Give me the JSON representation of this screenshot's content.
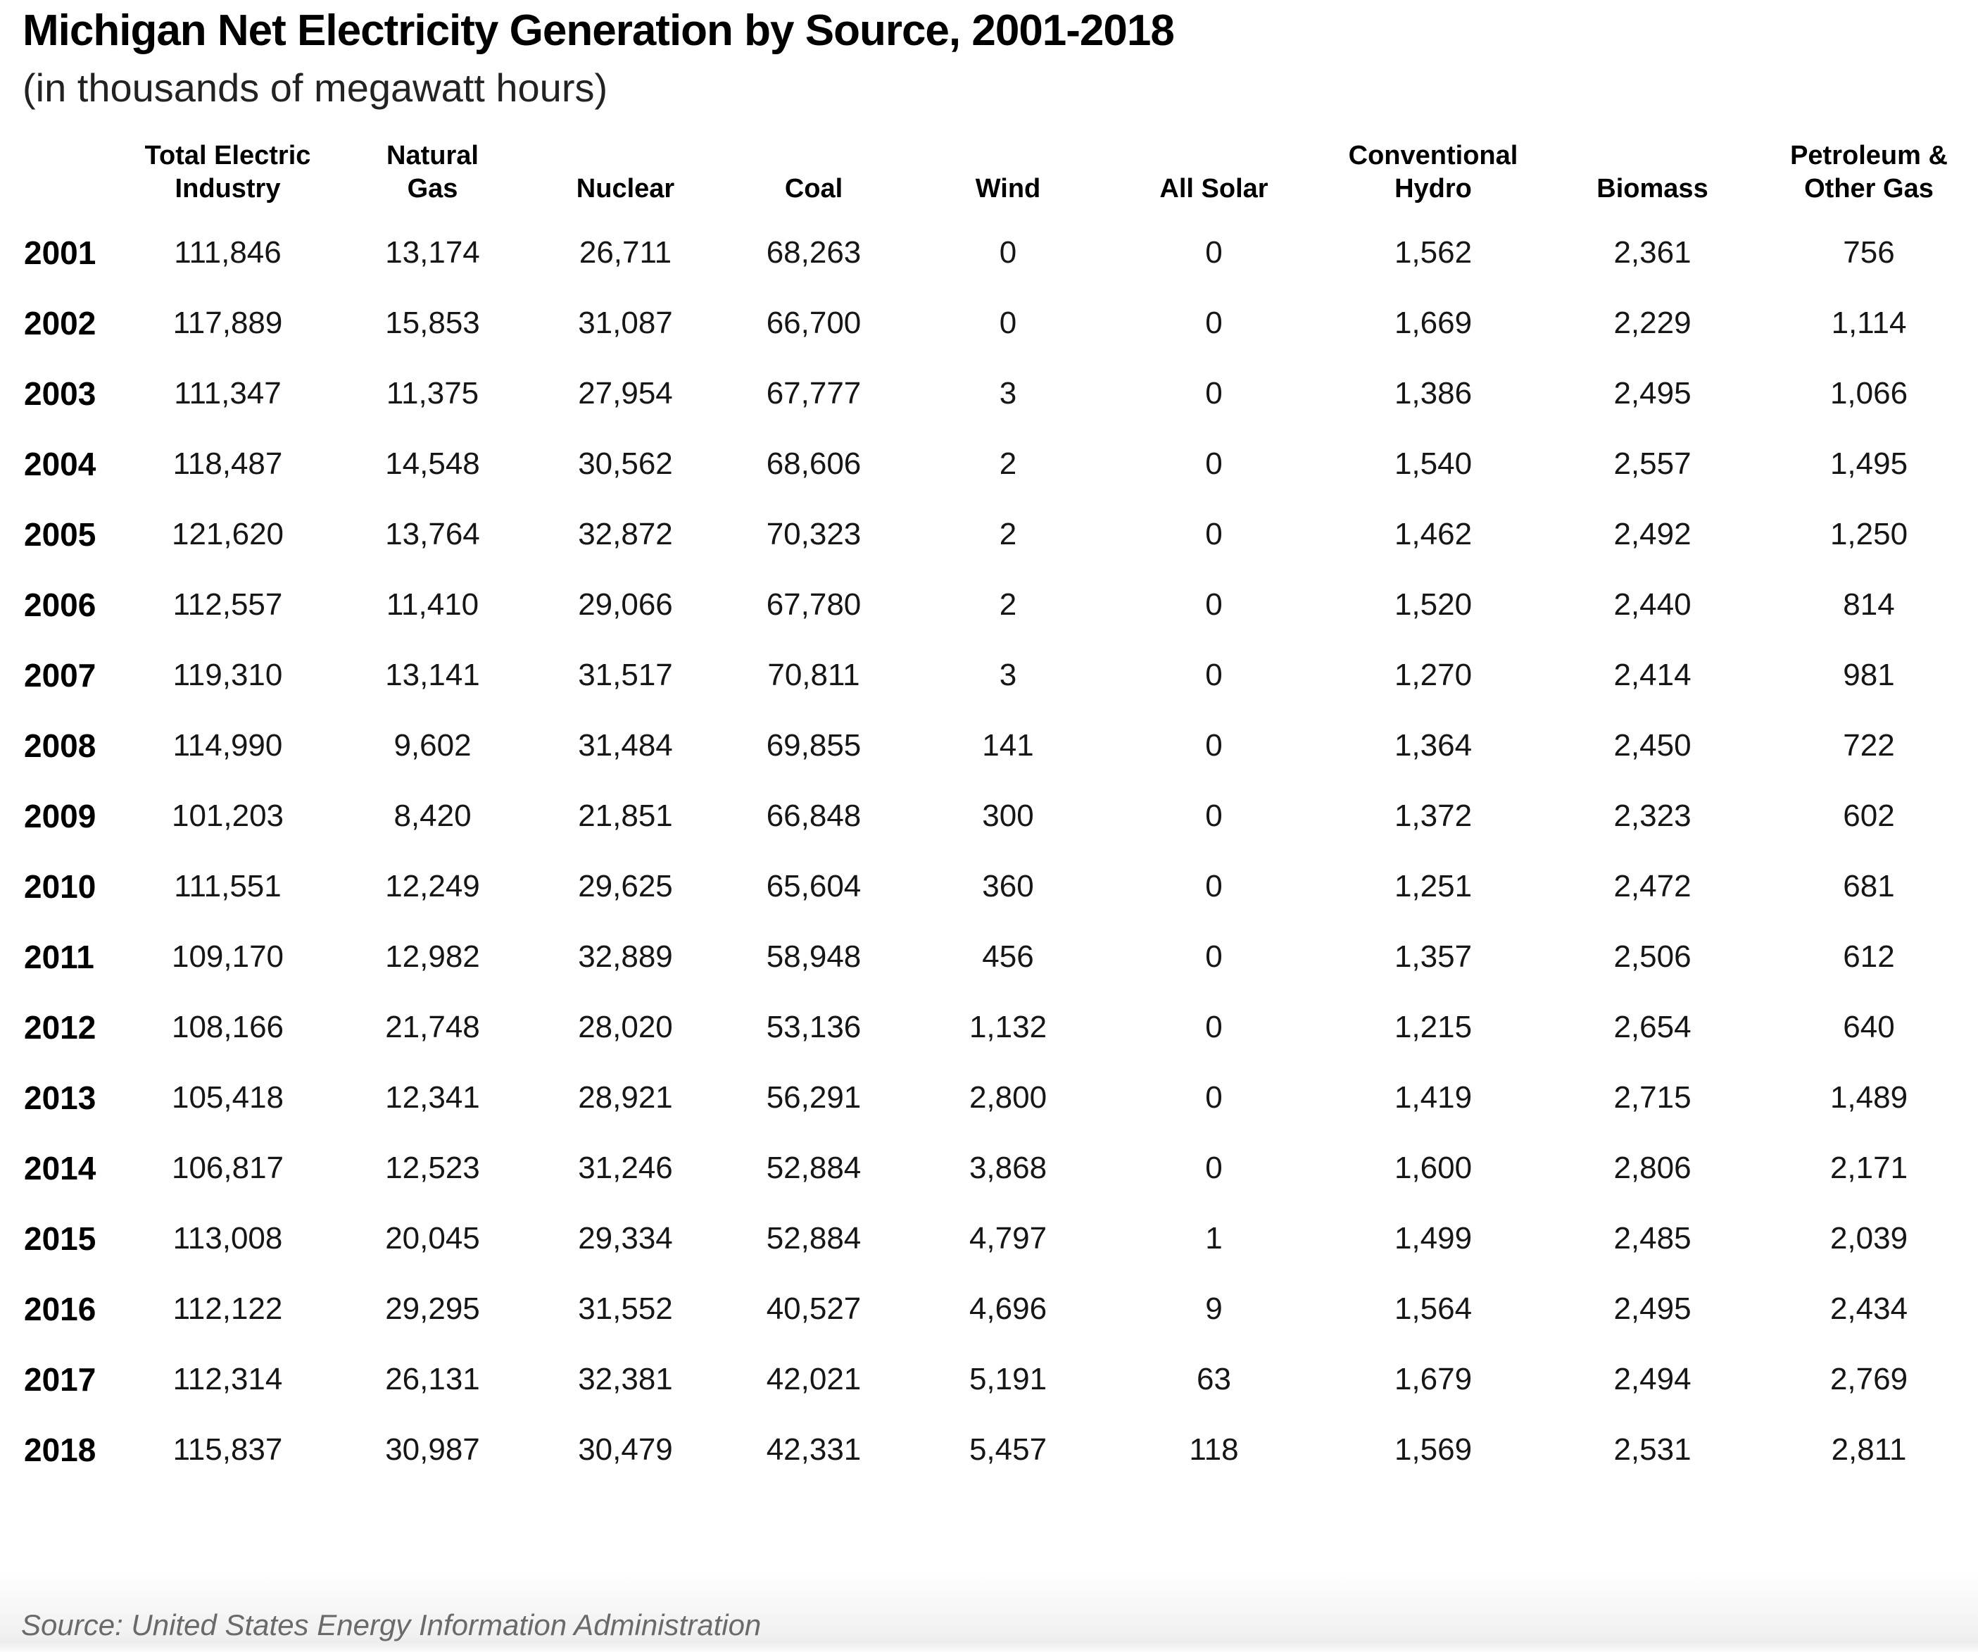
{
  "title": "Michigan Net Electricity Generation by Source, 2001-2018",
  "subtitle": "(in thousands of megawatt hours)",
  "source": "Source: United States Energy Information Administration",
  "chart_data": {
    "type": "table",
    "title": "Michigan Net Electricity Generation by Source, 2001-2018",
    "units": "thousands of megawatt hours",
    "columns": [
      {
        "lines": [
          ""
        ]
      },
      {
        "lines": [
          "Total Electric",
          "Industry"
        ]
      },
      {
        "lines": [
          "Natural",
          "Gas"
        ]
      },
      {
        "lines": [
          "Nuclear"
        ]
      },
      {
        "lines": [
          "Coal"
        ]
      },
      {
        "lines": [
          "Wind"
        ]
      },
      {
        "lines": [
          "All Solar"
        ]
      },
      {
        "lines": [
          "Conventional",
          "Hydro"
        ]
      },
      {
        "lines": [
          "Biomass"
        ]
      },
      {
        "lines": [
          "Petroleum &",
          "Other Gas"
        ]
      }
    ],
    "rows": [
      {
        "year": "2001",
        "values": [
          "111,846",
          "13,174",
          "26,711",
          "68,263",
          "0",
          "0",
          "1,562",
          "2,361",
          "756"
        ]
      },
      {
        "year": "2002",
        "values": [
          "117,889",
          "15,853",
          "31,087",
          "66,700",
          "0",
          "0",
          "1,669",
          "2,229",
          "1,114"
        ]
      },
      {
        "year": "2003",
        "values": [
          "111,347",
          "11,375",
          "27,954",
          "67,777",
          "3",
          "0",
          "1,386",
          "2,495",
          "1,066"
        ]
      },
      {
        "year": "2004",
        "values": [
          "118,487",
          "14,548",
          "30,562",
          "68,606",
          "2",
          "0",
          "1,540",
          "2,557",
          "1,495"
        ]
      },
      {
        "year": "2005",
        "values": [
          "121,620",
          "13,764",
          "32,872",
          "70,323",
          "2",
          "0",
          "1,462",
          "2,492",
          "1,250"
        ]
      },
      {
        "year": "2006",
        "values": [
          "112,557",
          "11,410",
          "29,066",
          "67,780",
          "2",
          "0",
          "1,520",
          "2,440",
          "814"
        ]
      },
      {
        "year": "2007",
        "values": [
          "119,310",
          "13,141",
          "31,517",
          "70,811",
          "3",
          "0",
          "1,270",
          "2,414",
          "981"
        ]
      },
      {
        "year": "2008",
        "values": [
          "114,990",
          "9,602",
          "31,484",
          "69,855",
          "141",
          "0",
          "1,364",
          "2,450",
          "722"
        ]
      },
      {
        "year": "2009",
        "values": [
          "101,203",
          "8,420",
          "21,851",
          "66,848",
          "300",
          "0",
          "1,372",
          "2,323",
          "602"
        ]
      },
      {
        "year": "2010",
        "values": [
          "111,551",
          "12,249",
          "29,625",
          "65,604",
          "360",
          "0",
          "1,251",
          "2,472",
          "681"
        ]
      },
      {
        "year": "2011",
        "values": [
          "109,170",
          "12,982",
          "32,889",
          "58,948",
          "456",
          "0",
          "1,357",
          "2,506",
          "612"
        ]
      },
      {
        "year": "2012",
        "values": [
          "108,166",
          "21,748",
          "28,020",
          "53,136",
          "1,132",
          "0",
          "1,215",
          "2,654",
          "640"
        ]
      },
      {
        "year": "2013",
        "values": [
          "105,418",
          "12,341",
          "28,921",
          "56,291",
          "2,800",
          "0",
          "1,419",
          "2,715",
          "1,489"
        ]
      },
      {
        "year": "2014",
        "values": [
          "106,817",
          "12,523",
          "31,246",
          "52,884",
          "3,868",
          "0",
          "1,600",
          "2,806",
          "2,171"
        ]
      },
      {
        "year": "2015",
        "values": [
          "113,008",
          "20,045",
          "29,334",
          "52,884",
          "4,797",
          "1",
          "1,499",
          "2,485",
          "2,039"
        ]
      },
      {
        "year": "2016",
        "values": [
          "112,122",
          "29,295",
          "31,552",
          "40,527",
          "4,696",
          "9",
          "1,564",
          "2,495",
          "2,434"
        ]
      },
      {
        "year": "2017",
        "values": [
          "112,314",
          "26,131",
          "32,381",
          "42,021",
          "5,191",
          "63",
          "1,679",
          "2,494",
          "2,769"
        ]
      },
      {
        "year": "2018",
        "values": [
          "115,837",
          "30,987",
          "30,479",
          "42,331",
          "5,457",
          "118",
          "1,569",
          "2,531",
          "2,811"
        ]
      }
    ]
  }
}
